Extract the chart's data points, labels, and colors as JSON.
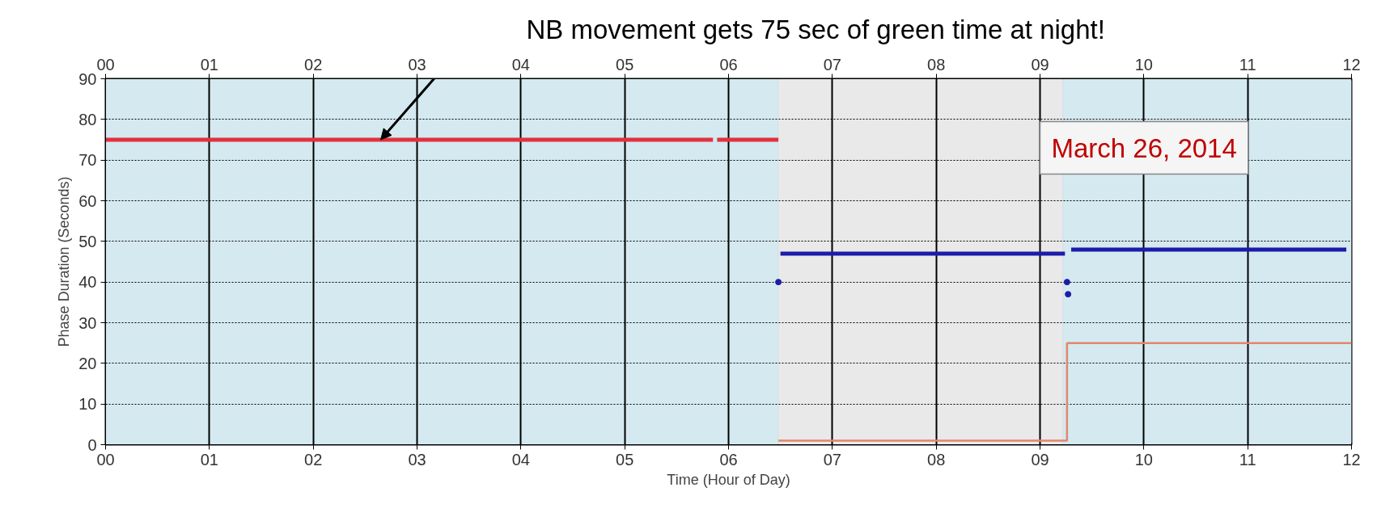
{
  "chart_data": {
    "type": "line",
    "xlabel": "Time (Hour of Day)",
    "ylabel": "Phase Duration (Seconds)",
    "xlim": [
      0,
      12
    ],
    "ylim": [
      0,
      90
    ],
    "xticks": [
      {
        "value": 0,
        "label": "00"
      },
      {
        "value": 1,
        "label": "01"
      },
      {
        "value": 2,
        "label": "02"
      },
      {
        "value": 3,
        "label": "03"
      },
      {
        "value": 4,
        "label": "04"
      },
      {
        "value": 5,
        "label": "05"
      },
      {
        "value": 6,
        "label": "06"
      },
      {
        "value": 7,
        "label": "07"
      },
      {
        "value": 8,
        "label": "08"
      },
      {
        "value": 9,
        "label": "09"
      },
      {
        "value": 10,
        "label": "10"
      },
      {
        "value": 11,
        "label": "11"
      },
      {
        "value": 12,
        "label": "12"
      }
    ],
    "x2lim": [
      0,
      12
    ],
    "x2ticks": [
      {
        "value": 0,
        "label": "00"
      },
      {
        "value": 1,
        "label": "01"
      },
      {
        "value": 2,
        "label": "02"
      },
      {
        "value": 3,
        "label": "03"
      },
      {
        "value": 4,
        "label": "04"
      },
      {
        "value": 5,
        "label": "05"
      },
      {
        "value": 6,
        "label": "06"
      },
      {
        "value": 7,
        "label": "07"
      },
      {
        "value": 8,
        "label": "08"
      },
      {
        "value": 9,
        "label": "09"
      },
      {
        "value": 10,
        "label": "10"
      },
      {
        "value": 11,
        "label": "11"
      },
      {
        "value": 12,
        "label": "12"
      }
    ],
    "yticks": [
      0,
      10,
      20,
      30,
      40,
      50,
      60,
      70,
      80,
      90
    ],
    "grid": true,
    "bands": [
      {
        "axis": "x",
        "from": 0,
        "to": 6.48,
        "color": "#d5e9f1"
      },
      {
        "axis": "x",
        "from": 6.48,
        "to": 9.22,
        "color": "#e9e9e9"
      },
      {
        "axis": "x",
        "from": 9.22,
        "to": 12,
        "color": "#d5e9f1"
      }
    ],
    "series": [
      {
        "color": "#e0323c",
        "x": [
          0,
          5.85,
          5.87,
          5.89,
          6.48
        ],
        "values": [
          75,
          75,
          null,
          75,
          75
        ]
      },
      {
        "color": "#1c1ca8",
        "x": [
          6.5,
          9.24,
          9.27,
          9.3,
          11.95
        ],
        "values": [
          47,
          47,
          null,
          48,
          48
        ]
      },
      {
        "type": "scatter",
        "color": "#1c1ca8",
        "marker": "circle",
        "x": [
          6.48,
          9.26,
          9.27
        ],
        "values": [
          40,
          40,
          37
        ]
      },
      {
        "type": "step",
        "color": "#e3876a",
        "x": [
          6.48,
          9.26,
          12
        ],
        "values": [
          1,
          25,
          25
        ]
      }
    ],
    "annotations": [
      {
        "text": "NB movement gets 75 sec of green time at night!",
        "x": 2.65,
        "y": 75
      },
      "March 26, 2014"
    ]
  }
}
